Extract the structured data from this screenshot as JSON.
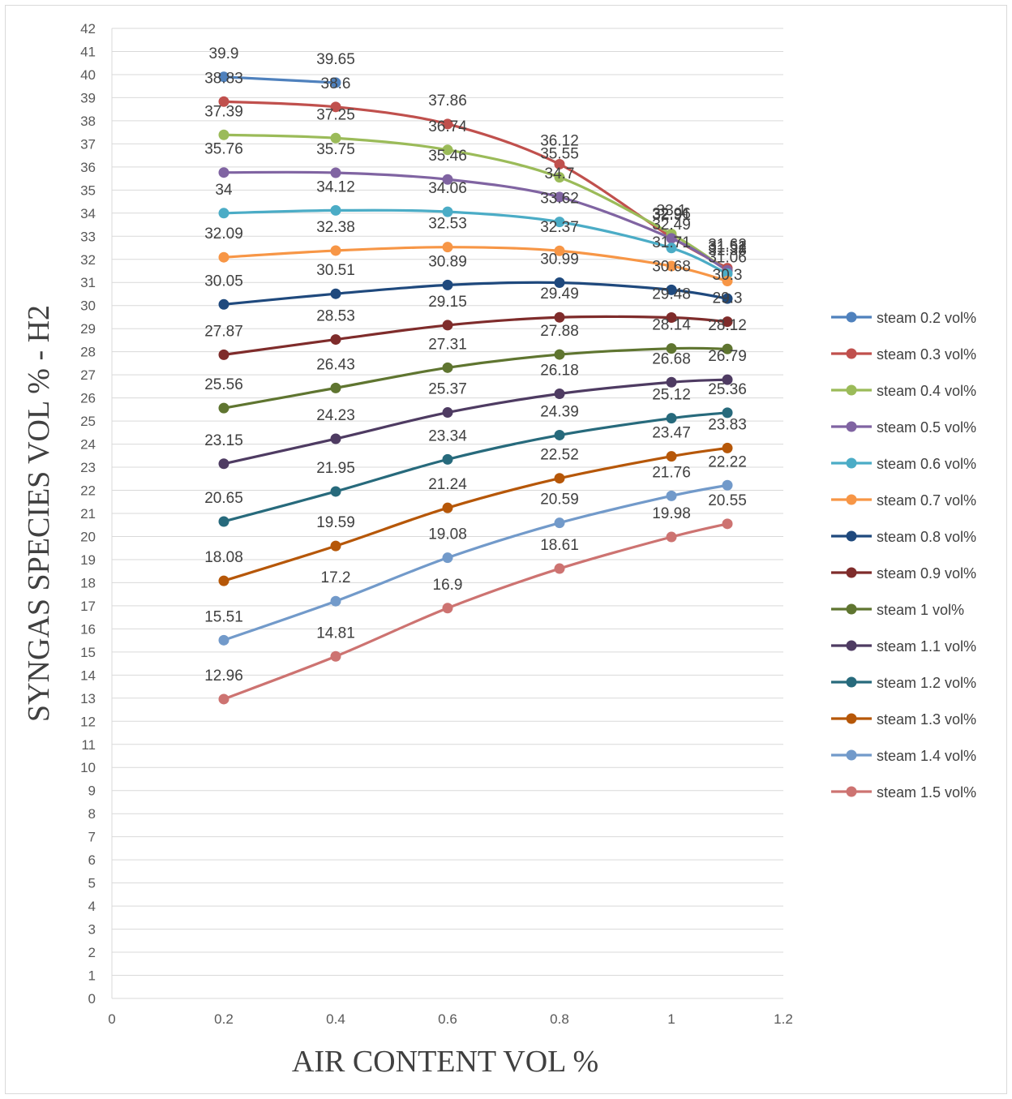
{
  "chart_data": {
    "type": "line",
    "title": "",
    "xlabel": "AIR CONTENT VOL %",
    "ylabel": "SYNGAS SPECIES VOL % - H2",
    "x": [
      0.2,
      0.4,
      0.6,
      0.8,
      1,
      1.1
    ],
    "xlim": [
      0,
      1.2
    ],
    "ylim": [
      0,
      42
    ],
    "xticks": [
      "0",
      "0.2",
      "0.4",
      "0.6",
      "0.8",
      "1",
      "1.2"
    ],
    "yticks": [
      "0",
      "1",
      "2",
      "3",
      "4",
      "5",
      "6",
      "7",
      "8",
      "9",
      "10",
      "11",
      "12",
      "13",
      "14",
      "15",
      "16",
      "17",
      "18",
      "19",
      "20",
      "21",
      "22",
      "23",
      "24",
      "25",
      "26",
      "27",
      "28",
      "29",
      "30",
      "31",
      "32",
      "33",
      "34",
      "35",
      "36",
      "37",
      "38",
      "39",
      "40",
      "41",
      "42"
    ],
    "grid": "horizontal",
    "smooth": true,
    "data_labels": true,
    "legend_position": "right",
    "series": [
      {
        "name": "steam 0.2 vol%",
        "color": "#4f81bd",
        "values": [
          39.9,
          39.65,
          null,
          null,
          null,
          null
        ],
        "labels": [
          "39.9",
          "39.65"
        ]
      },
      {
        "name": "steam 0.3 vol%",
        "color": "#c0504d",
        "values": [
          38.83,
          38.6,
          37.86,
          36.12,
          32.96,
          31.62
        ],
        "labels": [
          "38.83",
          "38.6",
          "37.86",
          "36.12",
          "32.96",
          "31.62"
        ]
      },
      {
        "name": "steam 0.4 vol%",
        "color": "#9bbb59",
        "values": [
          37.39,
          37.25,
          36.74,
          35.55,
          33.1,
          31.51
        ],
        "labels": [
          "37.39",
          "37.25",
          "36.74",
          "35.55",
          "33.1",
          "31.51"
        ]
      },
      {
        "name": "steam 0.5 vol%",
        "color": "#8064a2",
        "values": [
          35.76,
          35.75,
          35.46,
          34.7,
          32.91,
          31.52
        ],
        "labels": [
          "35.76",
          "35.75",
          "35.46",
          "34.7",
          "32.91",
          "31.52"
        ]
      },
      {
        "name": "steam 0.6 vol%",
        "color": "#4bacc6",
        "values": [
          34,
          34.12,
          34.06,
          33.62,
          32.49,
          31.38
        ],
        "labels": [
          "34",
          "34.12",
          "34.06",
          "33.62",
          "32.49",
          "31.38"
        ]
      },
      {
        "name": "steam 0.7 vol%",
        "color": "#f79646",
        "values": [
          32.09,
          32.38,
          32.53,
          32.37,
          31.71,
          31.06
        ],
        "labels": [
          "32.09",
          "32.38",
          "32.53",
          "32.37",
          "31.71",
          "31.06"
        ]
      },
      {
        "name": "steam 0.8 vol%",
        "color": "#1f497d",
        "values": [
          30.05,
          30.51,
          30.89,
          30.99,
          30.68,
          30.3
        ],
        "labels": [
          "30.05",
          "30.51",
          "30.89",
          "30.99",
          "30.68",
          "30.3"
        ]
      },
      {
        "name": "steam 0.9 vol%",
        "color": "#7f2c2b",
        "values": [
          27.87,
          28.53,
          29.15,
          29.49,
          29.48,
          29.3
        ],
        "labels": [
          "27.87",
          "28.53",
          "29.15",
          "29.49",
          "29.48",
          "29.3"
        ]
      },
      {
        "name": "steam 1 vol%",
        "color": "#5f7530",
        "values": [
          25.56,
          26.43,
          27.31,
          27.88,
          28.14,
          28.12
        ],
        "labels": [
          "25.56",
          "26.43",
          "27.31",
          "27.88",
          "28.14",
          "28.12"
        ]
      },
      {
        "name": "steam 1.1 vol%",
        "color": "#4e3b62",
        "values": [
          23.15,
          24.23,
          25.37,
          26.18,
          26.68,
          26.79
        ],
        "labels": [
          "23.15",
          "24.23",
          "25.37",
          "26.18",
          "26.68",
          "26.79"
        ]
      },
      {
        "name": "steam 1.2 vol%",
        "color": "#276a7c",
        "values": [
          20.65,
          21.95,
          23.34,
          24.39,
          25.12,
          25.36
        ],
        "labels": [
          "20.65",
          "21.95",
          "23.34",
          "24.39",
          "25.12",
          "25.36"
        ]
      },
      {
        "name": "steam 1.3 vol%",
        "color": "#b65708",
        "values": [
          18.08,
          19.59,
          21.24,
          22.52,
          23.47,
          23.83
        ],
        "labels": [
          "18.08",
          "19.59",
          "21.24",
          "22.52",
          "23.47",
          "23.83"
        ]
      },
      {
        "name": "steam 1.4 vol%",
        "color": "#729aca",
        "values": [
          15.51,
          17.2,
          19.08,
          20.59,
          21.76,
          22.22
        ],
        "labels": [
          "15.51",
          "17.2",
          "19.08",
          "20.59",
          "21.76",
          "22.22"
        ]
      },
      {
        "name": "steam 1.5 vol%",
        "color": "#cd7371",
        "values": [
          12.96,
          14.81,
          16.9,
          18.61,
          19.98,
          20.55
        ],
        "labels": [
          "12.96",
          "14.81",
          "16.9",
          "18.61",
          "19.98",
          "20.55"
        ]
      }
    ]
  }
}
